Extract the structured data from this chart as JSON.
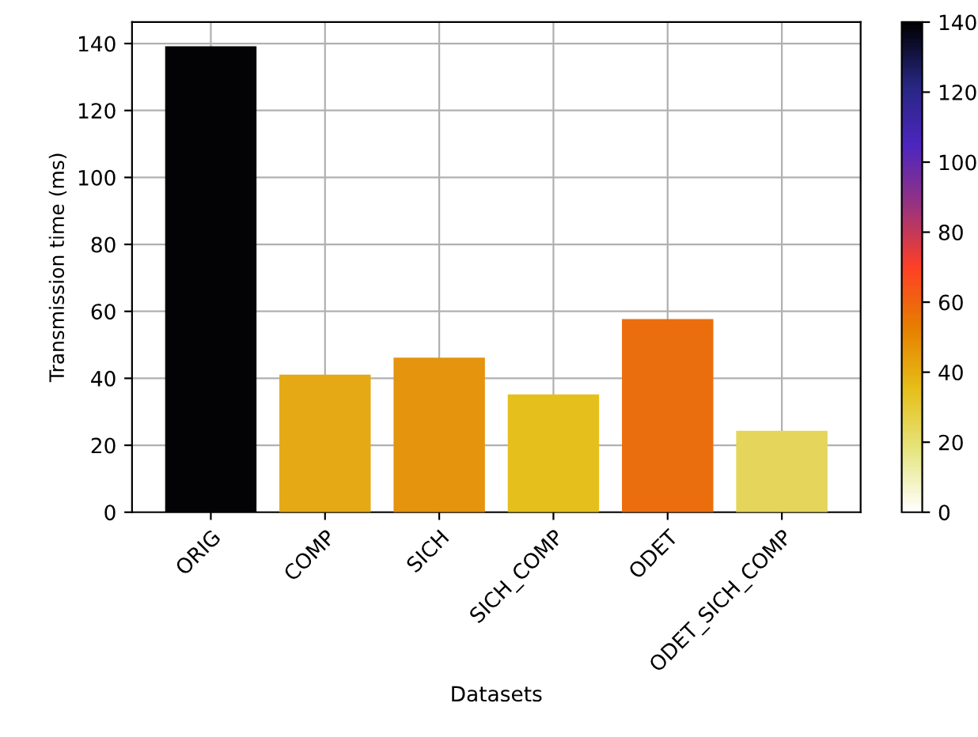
{
  "chart_data": {
    "type": "bar",
    "xlabel": "Datasets",
    "ylabel": "Transmission time (ms)",
    "categories": [
      "ORIG",
      "COMP",
      "SICH",
      "SICH_COMP",
      "ODET",
      "ODET_SICH_COMP"
    ],
    "values": [
      139.2,
      41.1,
      46.2,
      35.2,
      57.7,
      24.3
    ],
    "colors": [
      "#030305",
      "#e4a914",
      "#e5940d",
      "#e5c01d",
      "#eb6e0e",
      "#e5d55a"
    ],
    "ylim": [
      0,
      146.4
    ],
    "yticks": [
      0,
      20,
      40,
      60,
      80,
      100,
      120,
      140
    ],
    "clim": [
      0,
      140
    ],
    "cticks": [
      0,
      20,
      40,
      60,
      80,
      100,
      120,
      140
    ],
    "grid": true
  }
}
